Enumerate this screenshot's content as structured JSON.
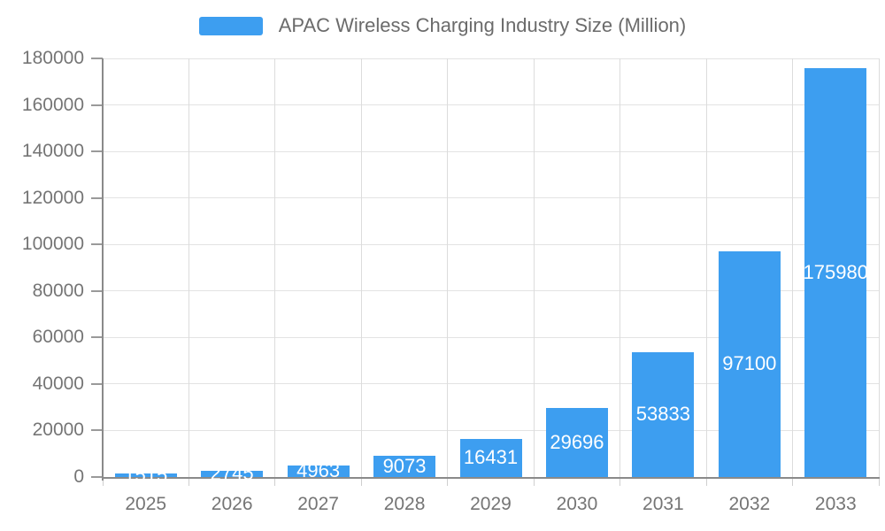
{
  "legend": {
    "label": "APAC Wireless Charging Industry Size (Million)"
  },
  "chart_data": {
    "type": "bar",
    "title": "APAC Wireless Charging Industry Size (Million)",
    "series_name": "APAC Wireless Charging Industry Size (Million)",
    "categories": [
      "2025",
      "2026",
      "2027",
      "2028",
      "2029",
      "2030",
      "2031",
      "2032",
      "2033"
    ],
    "values": [
      1515,
      2745,
      4963,
      9073,
      16431,
      29696,
      53833,
      97100,
      175980
    ],
    "data_labels": [
      "1515",
      "2745",
      "4963",
      "9073",
      "16431",
      "29696",
      "53833",
      "97100",
      "175980"
    ],
    "xlabel": "",
    "ylabel": "",
    "ylim": [
      0,
      180000
    ],
    "ytick_step": 20000,
    "yticks": [
      0,
      20000,
      40000,
      60000,
      80000,
      100000,
      120000,
      140000,
      160000,
      180000
    ],
    "ytick_labels": [
      "0",
      "20000",
      "40000",
      "60000",
      "80000",
      "100000",
      "120000",
      "140000",
      "160000",
      "180000"
    ],
    "grid": "on",
    "legend_position": "top",
    "label_position": "inside-center",
    "colors": {
      "bar": "#3d9ef0",
      "bar_label": "#ffffff",
      "axis_text": "#757575",
      "axis_line": "#8a8a8a",
      "grid_h": "#e3e3e3",
      "grid_v": "#dcdcdc",
      "tick_y": "#9a9a9a",
      "tick_x": "#cfcfcf",
      "legend_text": "#6b6b6b"
    }
  }
}
